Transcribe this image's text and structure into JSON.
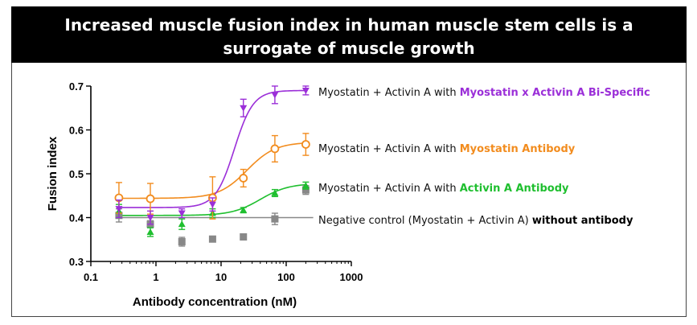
{
  "title": {
    "line1": "Increased muscle fusion index in human muscle stem cells is a",
    "line2": "surrogate of muscle growth"
  },
  "chart_data": {
    "type": "scatter",
    "title": "Increased muscle fusion index in human muscle stem cells is a surrogate of muscle growth",
    "xlabel": "Antibody concentration (nM)",
    "ylabel": "Fusion index",
    "xscale": "log",
    "xlim": [
      0.1,
      1000
    ],
    "ylim": [
      0.3,
      0.7
    ],
    "xticks": [
      "0.1",
      "1",
      "10",
      "100",
      "1000"
    ],
    "yticks": [
      "0.3",
      "0.4",
      "0.5",
      "0.6",
      "0.7"
    ],
    "legend_position": "right",
    "series": [
      {
        "name": "bispecific",
        "label_prefix": "Myostatin + Activin A with ",
        "label_highlight": "Myostatin x Activin A Bi-Specific",
        "color": "#9b2fd8",
        "marker": "triangle-down",
        "x": [
          0.27,
          0.82,
          2.5,
          7.4,
          22,
          67,
          200
        ],
        "y": [
          0.42,
          0.4,
          0.41,
          0.43,
          0.65,
          0.68,
          0.69
        ],
        "err": [
          0.02,
          0.015,
          0.01,
          0.015,
          0.02,
          0.02,
          0.01
        ],
        "fit": {
          "bottom": 0.423,
          "top": 0.69,
          "ec50": 16,
          "hill": 3
        }
      },
      {
        "name": "myostatin",
        "label_prefix": "Myostatin + Activin A with ",
        "label_highlight": "Myostatin Antibody",
        "color": "#f28c1e",
        "marker": "circle-open",
        "x": [
          0.27,
          0.82,
          7.4,
          22,
          67,
          200
        ],
        "y": [
          0.445,
          0.443,
          0.445,
          0.49,
          0.557,
          0.567
        ],
        "err": [
          0.035,
          0.035,
          0.048,
          0.02,
          0.03,
          0.025
        ],
        "fit": {
          "bottom": 0.444,
          "top": 0.572,
          "ec50": 25,
          "hill": 2
        }
      },
      {
        "name": "activin",
        "label_prefix": "Myostatin + Activin A with ",
        "label_highlight": "Activin A Antibody",
        "color": "#1fbf2f",
        "marker": "triangle-up",
        "x": [
          0.27,
          0.82,
          2.5,
          7.4,
          22,
          67,
          200
        ],
        "y": [
          0.415,
          0.367,
          0.385,
          0.41,
          0.417,
          0.456,
          0.473
        ],
        "err": [
          0.015,
          0.01,
          0.012,
          0.01,
          0.006,
          0.008,
          0.008
        ],
        "fit": {
          "bottom": 0.405,
          "top": 0.478,
          "ec50": 40,
          "hill": 2
        }
      },
      {
        "name": "negative",
        "label_prefix": "Negative control (Myostatin + Activin A) ",
        "label_highlight": "without antibody",
        "color": "#888888",
        "marker": "square",
        "x": [
          0.27,
          0.82,
          2.5,
          7.4,
          22,
          67,
          200
        ],
        "y": [
          0.405,
          0.385,
          0.345,
          0.351,
          0.356,
          0.397,
          0.463
        ],
        "err": [
          0.015,
          0.008,
          0.01,
          0.004,
          0.004,
          0.013,
          0.01
        ],
        "fit": {
          "constant": 0.4
        }
      }
    ]
  }
}
